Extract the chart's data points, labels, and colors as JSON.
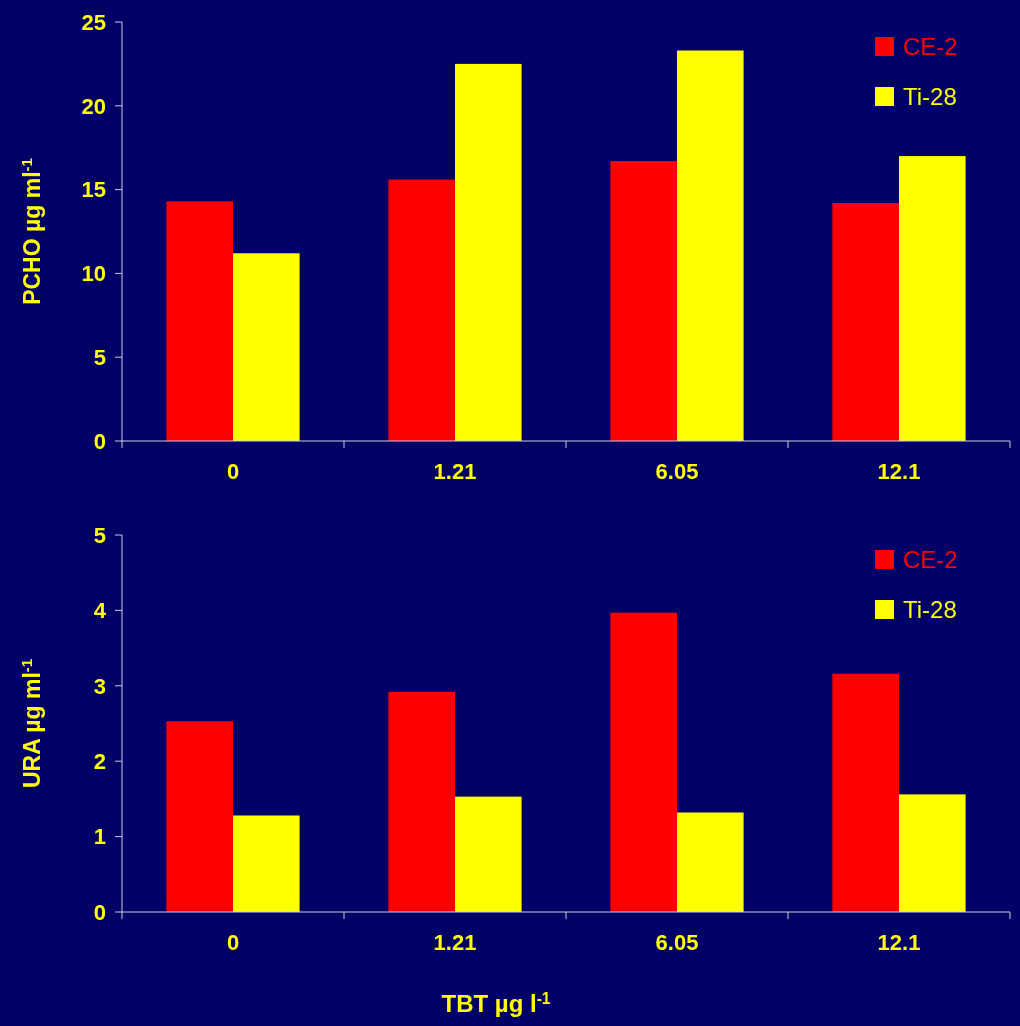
{
  "chart_data": [
    {
      "type": "bar",
      "ylabel": "PCHO µg ml$^{-1}$",
      "categories": [
        "0",
        "1.21",
        "6.05",
        "12.1"
      ],
      "series": [
        {
          "name": "CE-2",
          "color": "#ff0000",
          "values": [
            14.3,
            15.6,
            16.7,
            14.2
          ]
        },
        {
          "name": "Ti-28",
          "color": "#ffff00",
          "values": [
            11.2,
            22.5,
            23.3,
            17.0
          ]
        }
      ],
      "ylim": [
        0,
        25
      ],
      "yticks": [
        0,
        5,
        10,
        15,
        20,
        25
      ],
      "legend": "top right",
      "grid": false
    },
    {
      "type": "bar",
      "ylabel": "URA µg ml$^{-1}$",
      "xlabel": "TBT µg l$^{-1}$",
      "categories": [
        "0",
        "1.21",
        "6.05",
        "12.1"
      ],
      "series": [
        {
          "name": "CE-2",
          "color": "#ff0000",
          "values": [
            2.53,
            2.92,
            3.97,
            3.16
          ]
        },
        {
          "name": "Ti-28",
          "color": "#ffff00",
          "values": [
            1.28,
            1.53,
            1.32,
            1.56
          ]
        }
      ],
      "ylim": [
        0,
        5
      ],
      "yticks": [
        0,
        1,
        2,
        3,
        4,
        5
      ],
      "legend": "top right",
      "grid": false
    }
  ]
}
